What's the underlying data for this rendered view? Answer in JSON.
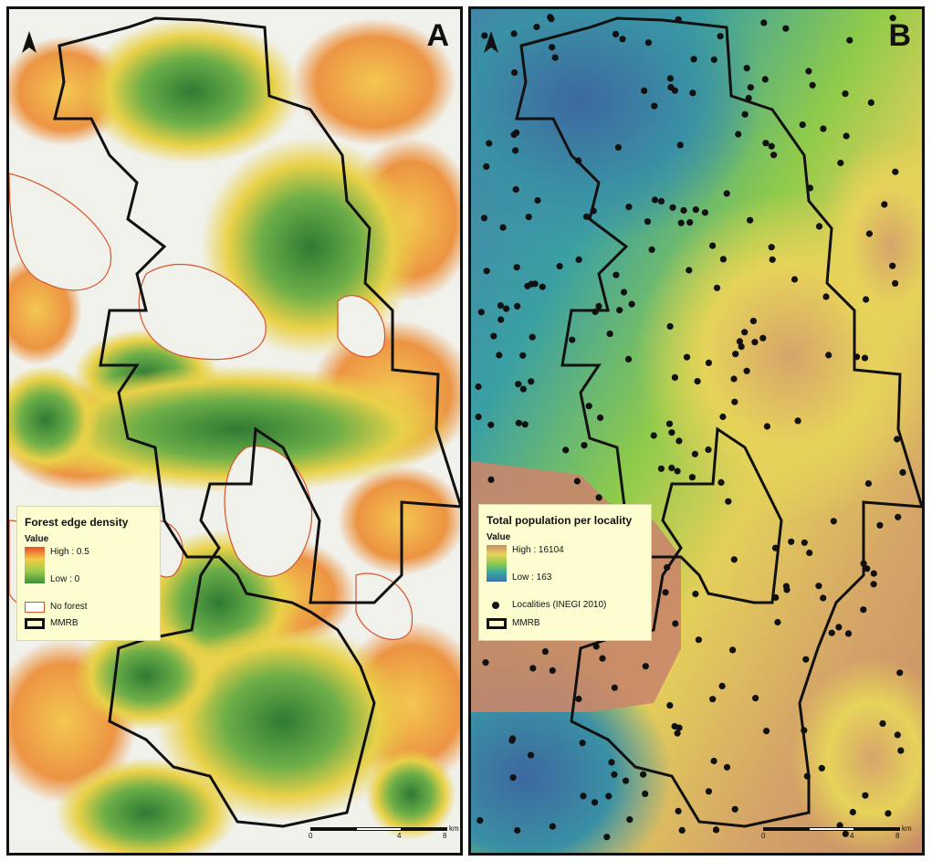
{
  "panels": [
    {
      "letter": "A",
      "legend": {
        "title": "Forest edge density",
        "value_heading": "Value",
        "high_label": "High : 0.5",
        "low_label": "Low : 0",
        "no_forest_label": "No forest",
        "boundary_label": "MMRB"
      },
      "ramp_colors": [
        "#e84a2a",
        "#f4c842",
        "#9acd4c",
        "#3f8f3a"
      ],
      "scale": {
        "ticks": [
          "0",
          "4",
          "8"
        ],
        "unit": "km"
      }
    },
    {
      "letter": "B",
      "legend": {
        "title": "Total population per locality",
        "value_heading": "Value",
        "high_label": "High : 16104",
        "low_label": "Low : 163",
        "localities_label": "Localities (INEGI 2010)",
        "boundary_label": "MMRB"
      },
      "ramp_colors": [
        "#c98c68",
        "#e7d35a",
        "#8fcc4c",
        "#37a8a0",
        "#3b6fa6"
      ],
      "scale": {
        "ticks": [
          "0",
          "4",
          "8"
        ],
        "unit": "km"
      }
    }
  ]
}
